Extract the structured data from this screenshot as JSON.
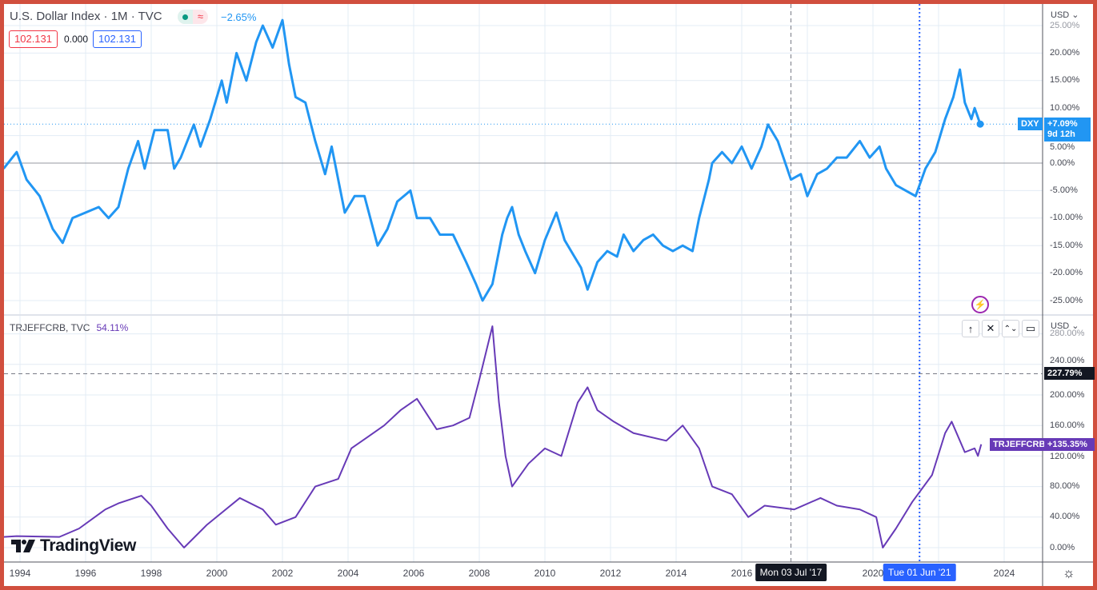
{
  "top_legend": {
    "title": "U.S. Dollar Index · 1M · TVC",
    "status_icon": "market-open-dot",
    "approx_icon": "≈",
    "change": "−2.65%",
    "bid": "102.131",
    "spread": "0.000",
    "ask": "102.131"
  },
  "bottom_legend": {
    "title": "TRJEFFCRB, TVC",
    "change": "54.11%"
  },
  "pane_buttons": [
    "↑",
    "✕",
    "⌃⌄",
    "▭"
  ],
  "currency_top": "USD ⌄",
  "currency_bottom": "USD ⌄",
  "colors": {
    "dxy": "#2196f3",
    "crb": "#673ab7",
    "frame": "#d14f3e",
    "crosshair_date": "#131722",
    "selected_date": "#2962ff"
  },
  "logo": "TradingView",
  "chart_data": [
    {
      "type": "line",
      "name": "DXY",
      "ylabel_unit": "%",
      "ylim": [
        -27,
        27
      ],
      "yticks": [
        "25.00%",
        "20.00%",
        "15.00%",
        "10.00%",
        "5.00%",
        "0.00%",
        "-5.00%",
        "-10.00%",
        "-15.00%",
        "-20.00%",
        "-25.00%"
      ],
      "ytick_values": [
        25,
        20,
        15,
        10,
        5,
        0,
        -5,
        -10,
        -15,
        -20,
        -25
      ],
      "last_label": "DXY",
      "last_value": "+7.09%",
      "countdown": "9d 12h",
      "points": [
        [
          1993.5,
          -1
        ],
        [
          1993.9,
          2
        ],
        [
          1994.2,
          -3
        ],
        [
          1994.6,
          -6
        ],
        [
          1995.0,
          -12
        ],
        [
          1995.3,
          -14.5
        ],
        [
          1995.6,
          -10
        ],
        [
          1996.0,
          -9
        ],
        [
          1996.4,
          -8
        ],
        [
          1996.7,
          -10
        ],
        [
          1997.0,
          -8
        ],
        [
          1997.3,
          -1
        ],
        [
          1997.6,
          4
        ],
        [
          1997.8,
          -1
        ],
        [
          1998.1,
          6
        ],
        [
          1998.5,
          6
        ],
        [
          1998.7,
          -1
        ],
        [
          1998.9,
          1
        ],
        [
          1999.3,
          7
        ],
        [
          1999.5,
          3
        ],
        [
          1999.8,
          8
        ],
        [
          2000.15,
          15
        ],
        [
          2000.3,
          11
        ],
        [
          2000.6,
          20
        ],
        [
          2000.9,
          15
        ],
        [
          2001.2,
          22
        ],
        [
          2001.4,
          25
        ],
        [
          2001.7,
          21
        ],
        [
          2002.0,
          26
        ],
        [
          2002.2,
          18
        ],
        [
          2002.4,
          12
        ],
        [
          2002.7,
          11
        ],
        [
          2003.0,
          4
        ],
        [
          2003.3,
          -2
        ],
        [
          2003.5,
          3
        ],
        [
          2003.9,
          -9
        ],
        [
          2004.2,
          -6
        ],
        [
          2004.5,
          -6
        ],
        [
          2004.9,
          -15
        ],
        [
          2005.2,
          -12
        ],
        [
          2005.5,
          -7
        ],
        [
          2005.9,
          -5
        ],
        [
          2006.1,
          -10
        ],
        [
          2006.5,
          -10
        ],
        [
          2006.8,
          -13
        ],
        [
          2007.2,
          -13
        ],
        [
          2007.6,
          -18
        ],
        [
          2007.9,
          -22
        ],
        [
          2008.1,
          -25
        ],
        [
          2008.4,
          -22
        ],
        [
          2008.7,
          -13
        ],
        [
          2008.85,
          -10
        ],
        [
          2009.0,
          -8
        ],
        [
          2009.2,
          -13
        ],
        [
          2009.4,
          -16
        ],
        [
          2009.7,
          -20
        ],
        [
          2010.0,
          -14
        ],
        [
          2010.35,
          -9
        ],
        [
          2010.6,
          -14
        ],
        [
          2010.9,
          -17
        ],
        [
          2011.1,
          -19
        ],
        [
          2011.3,
          -23
        ],
        [
          2011.6,
          -18
        ],
        [
          2011.9,
          -16
        ],
        [
          2012.2,
          -17
        ],
        [
          2012.4,
          -13
        ],
        [
          2012.7,
          -16
        ],
        [
          2013.0,
          -14
        ],
        [
          2013.3,
          -13
        ],
        [
          2013.6,
          -15
        ],
        [
          2013.9,
          -16
        ],
        [
          2014.2,
          -15
        ],
        [
          2014.5,
          -16
        ],
        [
          2014.7,
          -10
        ],
        [
          2015.0,
          -3
        ],
        [
          2015.1,
          0
        ],
        [
          2015.4,
          2
        ],
        [
          2015.7,
          0
        ],
        [
          2016.0,
          3
        ],
        [
          2016.3,
          -1
        ],
        [
          2016.6,
          3
        ],
        [
          2016.8,
          7
        ],
        [
          2017.1,
          4
        ],
        [
          2017.5,
          -3
        ],
        [
          2017.8,
          -2
        ],
        [
          2018.0,
          -6
        ],
        [
          2018.3,
          -2
        ],
        [
          2018.6,
          -1
        ],
        [
          2018.9,
          1
        ],
        [
          2019.2,
          1
        ],
        [
          2019.6,
          4
        ],
        [
          2019.9,
          1
        ],
        [
          2020.2,
          3
        ],
        [
          2020.4,
          -1
        ],
        [
          2020.7,
          -4
        ],
        [
          2021.0,
          -5
        ],
        [
          2021.3,
          -6
        ],
        [
          2021.6,
          -1
        ],
        [
          2021.9,
          2
        ],
        [
          2022.2,
          8
        ],
        [
          2022.45,
          12
        ],
        [
          2022.65,
          17
        ],
        [
          2022.8,
          11
        ],
        [
          2023.0,
          8
        ],
        [
          2023.1,
          10
        ],
        [
          2023.27,
          7.09
        ]
      ]
    },
    {
      "type": "line",
      "name": "TRJEFFCRB",
      "ylabel_unit": "%",
      "ylim": [
        -10,
        290
      ],
      "yticks": [
        "280.00%",
        "240.00%",
        "200.00%",
        "160.00%",
        "120.00%",
        "80.00%",
        "40.00%",
        "0.00%"
      ],
      "ytick_values": [
        280,
        240,
        200,
        160,
        120,
        80,
        40,
        0
      ],
      "crosshair_value": "227.79%",
      "crosshair_y": 227.79,
      "last_label": "TRJEFFCRB",
      "last_value": "+135.35%",
      "points": [
        [
          1993.5,
          14
        ],
        [
          1993.9,
          15
        ],
        [
          1995.2,
          14
        ],
        [
          1995.8,
          25
        ],
        [
          1996.6,
          50
        ],
        [
          1997.0,
          58
        ],
        [
          1997.7,
          68
        ],
        [
          1998.0,
          55
        ],
        [
          1998.5,
          25
        ],
        [
          1999.0,
          0
        ],
        [
          1999.7,
          30
        ],
        [
          2000.7,
          65
        ],
        [
          2001.4,
          50
        ],
        [
          2001.8,
          30
        ],
        [
          2002.4,
          40
        ],
        [
          2003.0,
          80
        ],
        [
          2003.7,
          90
        ],
        [
          2004.1,
          130
        ],
        [
          2004.6,
          145
        ],
        [
          2005.1,
          160
        ],
        [
          2005.6,
          180
        ],
        [
          2006.1,
          195
        ],
        [
          2006.7,
          155
        ],
        [
          2007.2,
          160
        ],
        [
          2007.7,
          170
        ],
        [
          2008.0,
          220
        ],
        [
          2008.4,
          290
        ],
        [
          2008.6,
          190
        ],
        [
          2008.8,
          120
        ],
        [
          2009.0,
          80
        ],
        [
          2009.5,
          110
        ],
        [
          2010.0,
          130
        ],
        [
          2010.5,
          120
        ],
        [
          2011.0,
          190
        ],
        [
          2011.3,
          210
        ],
        [
          2011.6,
          180
        ],
        [
          2012.1,
          165
        ],
        [
          2012.7,
          150
        ],
        [
          2013.7,
          140
        ],
        [
          2014.2,
          160
        ],
        [
          2014.7,
          130
        ],
        [
          2015.1,
          80
        ],
        [
          2015.7,
          70
        ],
        [
          2016.2,
          40
        ],
        [
          2016.7,
          55
        ],
        [
          2017.6,
          50
        ],
        [
          2018.4,
          65
        ],
        [
          2018.9,
          55
        ],
        [
          2019.6,
          50
        ],
        [
          2020.1,
          40
        ],
        [
          2020.3,
          0
        ],
        [
          2020.7,
          25
        ],
        [
          2021.2,
          60
        ],
        [
          2021.8,
          95
        ],
        [
          2022.2,
          150
        ],
        [
          2022.4,
          165
        ],
        [
          2022.8,
          125
        ],
        [
          2023.1,
          130
        ],
        [
          2023.2,
          120
        ],
        [
          2023.3,
          135.35
        ]
      ]
    }
  ],
  "x_axis": {
    "labels": [
      {
        "t": "1994",
        "y": 1994
      },
      {
        "t": "1996",
        "y": 1996
      },
      {
        "t": "1998",
        "y": 1998
      },
      {
        "t": "2000",
        "y": 2000
      },
      {
        "t": "2002",
        "y": 2002
      },
      {
        "t": "2004",
        "y": 2004
      },
      {
        "t": "2006",
        "y": 2006
      },
      {
        "t": "2008",
        "y": 2008
      },
      {
        "t": "2010",
        "y": 2010
      },
      {
        "t": "2012",
        "y": 2012
      },
      {
        "t": "2014",
        "y": 2014
      },
      {
        "t": "2016",
        "y": 2016
      },
      {
        "t": "2020",
        "y": 2020
      },
      {
        "t": "2024",
        "y": 2024
      }
    ],
    "crosshair_date": "Mon 03 Jul '17",
    "crosshair_year": 2017.5,
    "selected_date": "Tue 01 Jun '21",
    "selected_year": 2021.42
  }
}
